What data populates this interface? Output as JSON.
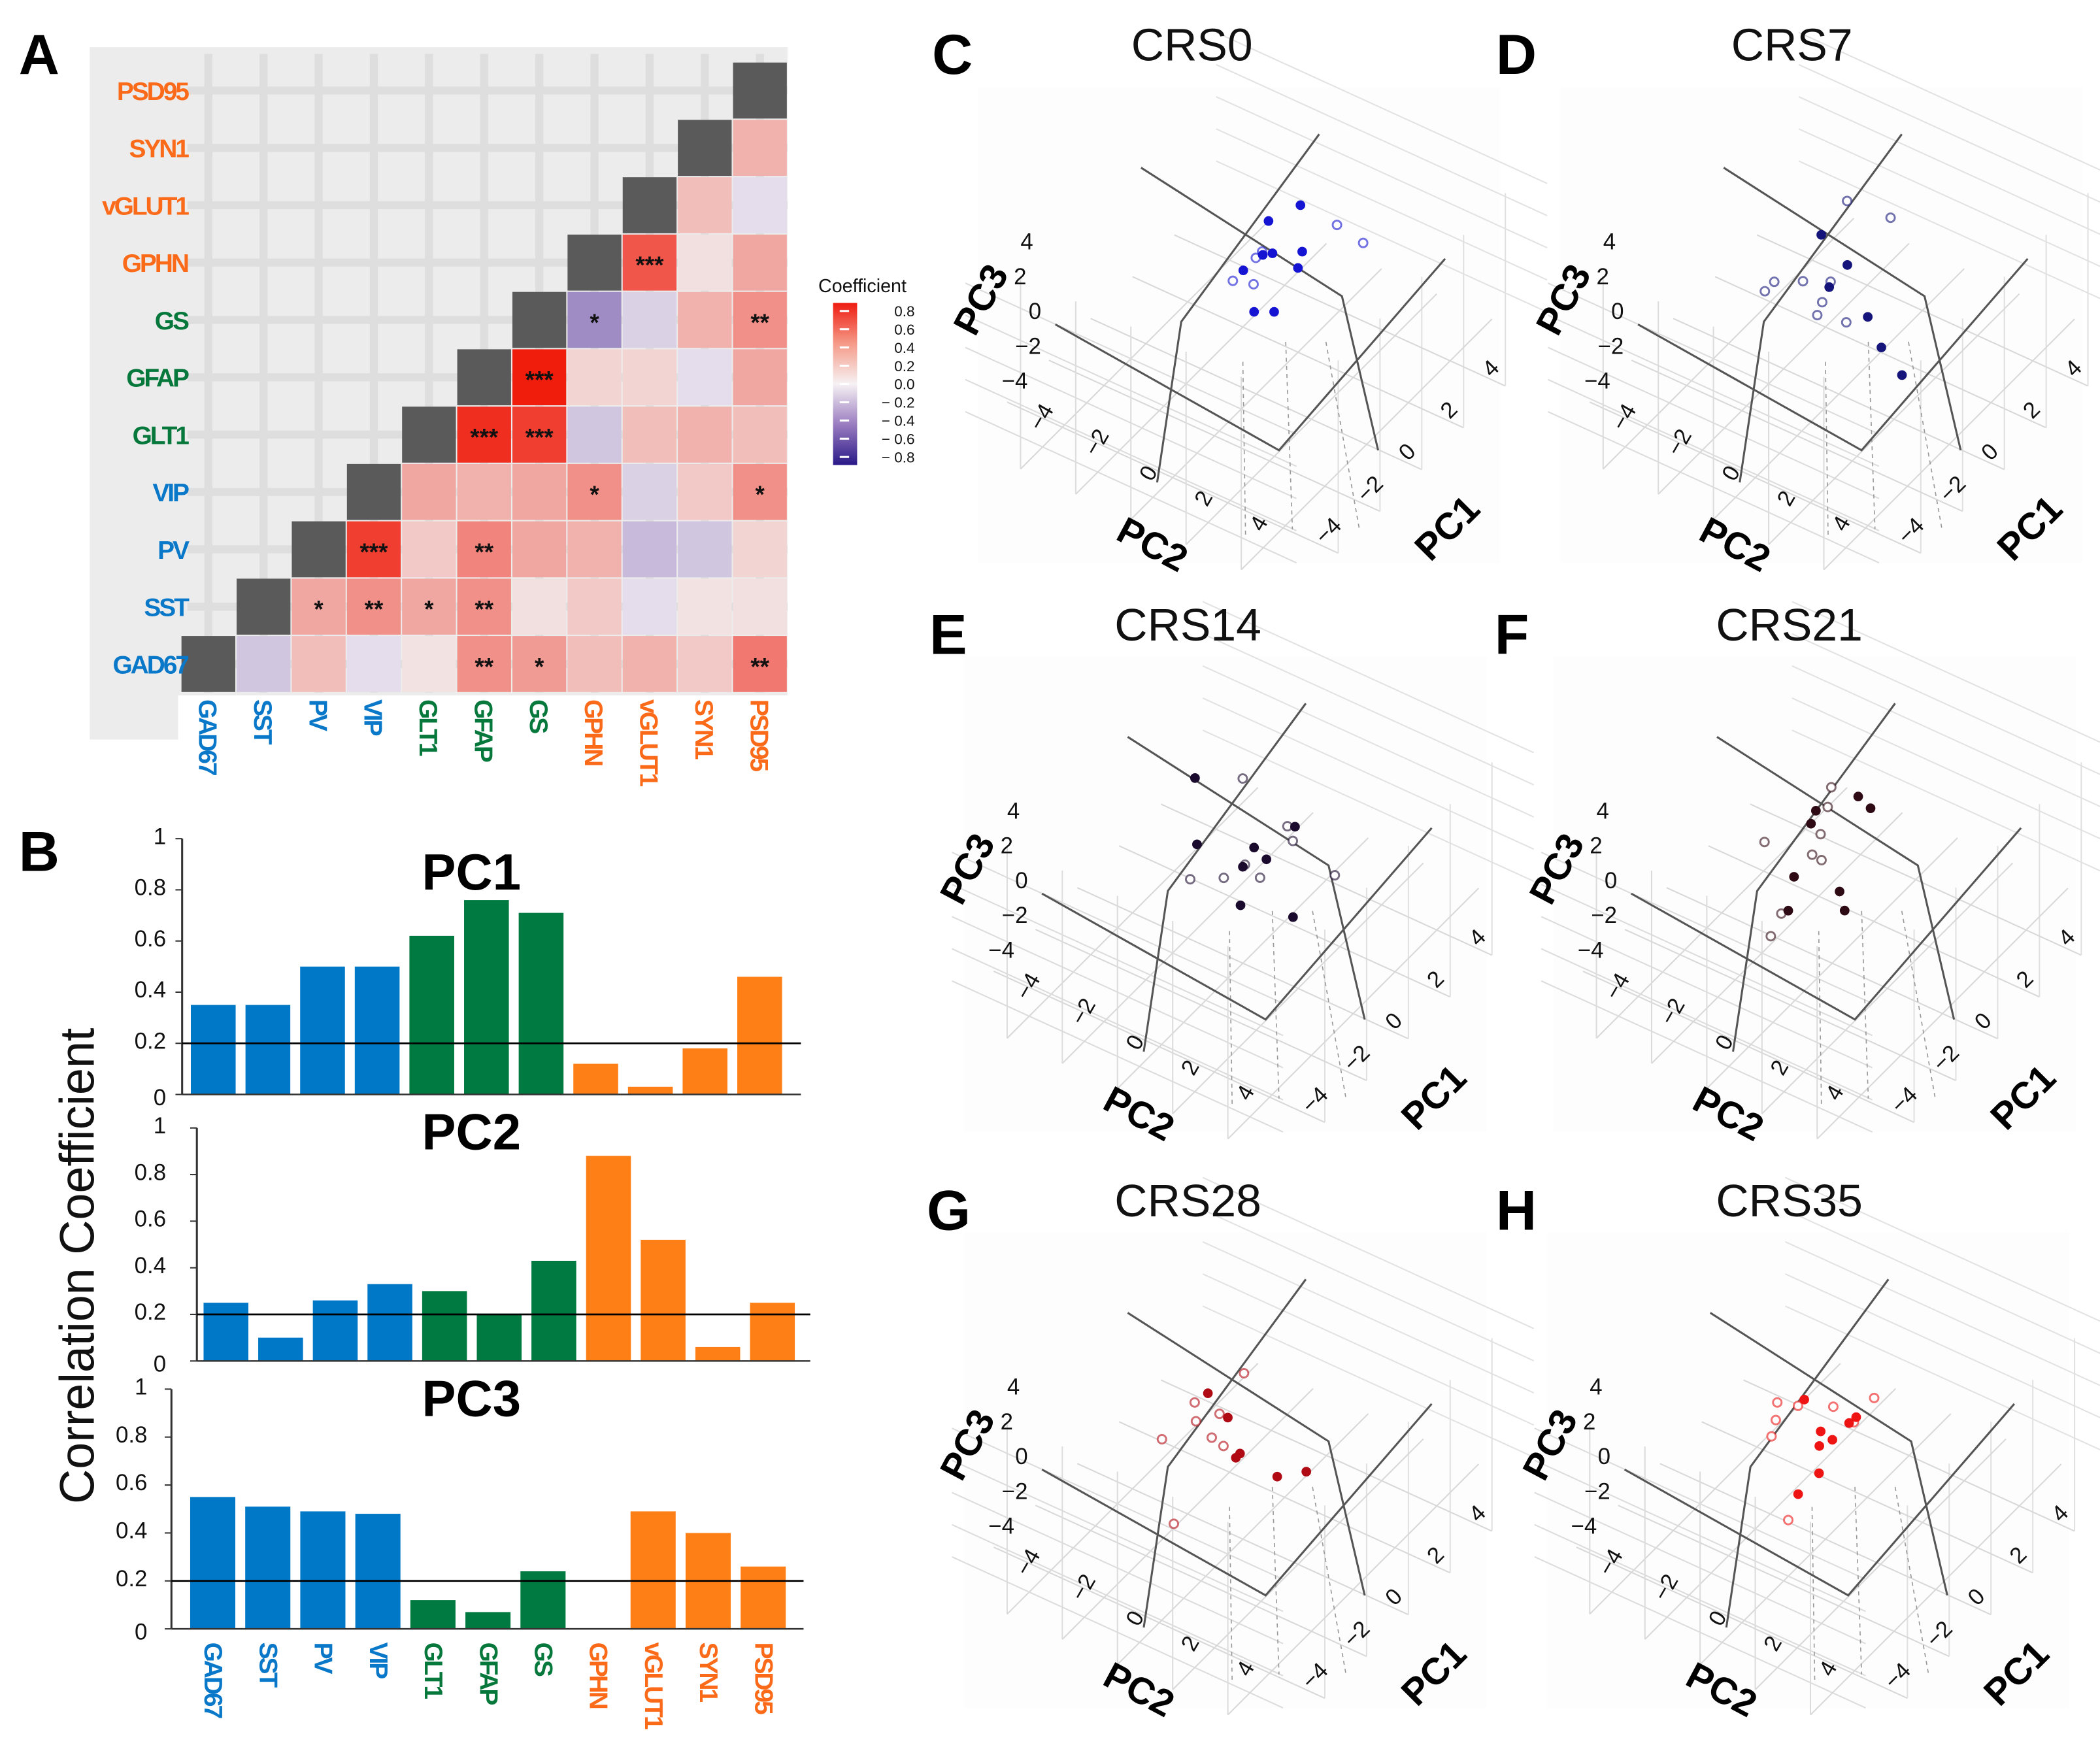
{
  "letters": [
    "A",
    "B",
    "C",
    "D",
    "E",
    "F",
    "G",
    "H"
  ],
  "gene_colors": [
    "#0a78c8",
    "#0a78c8",
    "#0a78c8",
    "#0a78c8",
    "#07783c",
    "#07783c",
    "#07783c",
    "#fb6a18",
    "#fb6a18",
    "#fb6a18",
    "#fb6a18"
  ],
  "bar_colors": {
    "interneuron": "#0078c8",
    "glial": "#007a40",
    "synaptic": "#ff7f17"
  },
  "chart_data": [
    {
      "type": "heatmap",
      "genes": [
        "GAD67",
        "SST",
        "PV",
        "VIP",
        "GLT1",
        "GFAP",
        "GS",
        "GPHN",
        "vGLUT1",
        "SYN1",
        "PSD95"
      ],
      "range": [
        -0.8,
        0.8
      ],
      "colorbar": {
        "title": "Coefficient",
        "ticks": [
          "0.8",
          "0.6",
          "0.4",
          "0.2",
          "0.0",
          "− 0.2",
          "− 0.4",
          "− 0.6",
          "− 0.8"
        ]
      },
      "pairs": [
        [
          "GAD67",
          "SST",
          -0.15,
          ""
        ],
        [
          "GAD67",
          "PV",
          0.2,
          ""
        ],
        [
          "GAD67",
          "VIP",
          -0.05,
          ""
        ],
        [
          "GAD67",
          "GLT1",
          0.04,
          ""
        ],
        [
          "GAD67",
          "GFAP",
          0.4,
          "**"
        ],
        [
          "GAD67",
          "GS",
          0.35,
          "*"
        ],
        [
          "GAD67",
          "GPHN",
          0.2,
          ""
        ],
        [
          "GAD67",
          "vGLUT1",
          0.25,
          ""
        ],
        [
          "GAD67",
          "SYN1",
          0.15,
          ""
        ],
        [
          "GAD67",
          "PSD95",
          0.5,
          "**"
        ],
        [
          "SST",
          "PV",
          0.3,
          "*"
        ],
        [
          "SST",
          "VIP",
          0.4,
          "**"
        ],
        [
          "SST",
          "GLT1",
          0.3,
          "*"
        ],
        [
          "SST",
          "GFAP",
          0.4,
          "**"
        ],
        [
          "SST",
          "GS",
          0.05,
          ""
        ],
        [
          "SST",
          "GPHN",
          0.15,
          ""
        ],
        [
          "SST",
          "vGLUT1",
          -0.05,
          ""
        ],
        [
          "SST",
          "SYN1",
          0.04,
          ""
        ],
        [
          "SST",
          "PSD95",
          0.05,
          ""
        ],
        [
          "PV",
          "VIP",
          0.75,
          "***"
        ],
        [
          "PV",
          "GLT1",
          0.15,
          ""
        ],
        [
          "PV",
          "GFAP",
          0.45,
          "**"
        ],
        [
          "PV",
          "GS",
          0.3,
          ""
        ],
        [
          "PV",
          "GPHN",
          0.25,
          ""
        ],
        [
          "PV",
          "vGLUT1",
          -0.2,
          ""
        ],
        [
          "PV",
          "SYN1",
          -0.15,
          ""
        ],
        [
          "PV",
          "PSD95",
          0.1,
          ""
        ],
        [
          "VIP",
          "GLT1",
          0.3,
          ""
        ],
        [
          "VIP",
          "GFAP",
          0.25,
          ""
        ],
        [
          "VIP",
          "GS",
          0.3,
          ""
        ],
        [
          "VIP",
          "GPHN",
          0.4,
          "*"
        ],
        [
          "VIP",
          "vGLUT1",
          -0.1,
          ""
        ],
        [
          "VIP",
          "SYN1",
          0.15,
          ""
        ],
        [
          "VIP",
          "PSD95",
          0.4,
          "*"
        ],
        [
          "GLT1",
          "GFAP",
          0.82,
          "***"
        ],
        [
          "GLT1",
          "GS",
          0.75,
          "***"
        ],
        [
          "GLT1",
          "GPHN",
          -0.15,
          ""
        ],
        [
          "GLT1",
          "vGLUT1",
          0.2,
          ""
        ],
        [
          "GLT1",
          "SYN1",
          0.25,
          ""
        ],
        [
          "GLT1",
          "PSD95",
          0.2,
          ""
        ],
        [
          "GFAP",
          "GS",
          0.92,
          "***"
        ],
        [
          "GFAP",
          "GPHN",
          0.1,
          ""
        ],
        [
          "GFAP",
          "vGLUT1",
          0.1,
          ""
        ],
        [
          "GFAP",
          "SYN1",
          -0.05,
          ""
        ],
        [
          "GFAP",
          "PSD95",
          0.3,
          ""
        ],
        [
          "GS",
          "GPHN",
          -0.4,
          "*"
        ],
        [
          "GS",
          "vGLUT1",
          -0.1,
          ""
        ],
        [
          "GS",
          "SYN1",
          0.25,
          ""
        ],
        [
          "GS",
          "PSD95",
          0.4,
          "**"
        ],
        [
          "GPHN",
          "vGLUT1",
          0.65,
          "***"
        ],
        [
          "GPHN",
          "SYN1",
          0.05,
          ""
        ],
        [
          "GPHN",
          "PSD95",
          0.3,
          ""
        ],
        [
          "vGLUT1",
          "SYN1",
          0.2,
          ""
        ],
        [
          "vGLUT1",
          "PSD95",
          -0.05,
          ""
        ],
        [
          "SYN1",
          "PSD95",
          0.25,
          ""
        ]
      ]
    },
    {
      "type": "bar",
      "title": "PC1",
      "ylabel": "Correlation Coefficient",
      "categories": [
        "GAD67",
        "SST",
        "PV",
        "VIP",
        "GLT1",
        "GFAP",
        "GS",
        "GPHN",
        "vGLUT1",
        "SYN1",
        "PSD95"
      ],
      "groups": [
        "interneuron",
        "interneuron",
        "interneuron",
        "interneuron",
        "glial",
        "glial",
        "glial",
        "synaptic",
        "synaptic",
        "synaptic",
        "synaptic"
      ],
      "values": [
        0.35,
        0.35,
        0.5,
        0.5,
        0.62,
        0.76,
        0.71,
        0.12,
        0.03,
        0.18,
        0.46
      ],
      "ylim": [
        0,
        1
      ],
      "yticks": [
        "0",
        "0.2",
        "0.4",
        "0.6",
        "0.8",
        "1"
      ],
      "threshold": 0.2
    },
    {
      "type": "bar",
      "title": "PC2",
      "categories": [
        "GAD67",
        "SST",
        "PV",
        "VIP",
        "GLT1",
        "GFAP",
        "GS",
        "GPHN",
        "vGLUT1",
        "SYN1",
        "PSD95"
      ],
      "groups": [
        "interneuron",
        "interneuron",
        "interneuron",
        "interneuron",
        "glial",
        "glial",
        "glial",
        "synaptic",
        "synaptic",
        "synaptic",
        "synaptic"
      ],
      "values": [
        0.25,
        0.1,
        0.26,
        0.33,
        0.3,
        0.2,
        0.43,
        0.88,
        0.52,
        0.06,
        0.25
      ],
      "ylim": [
        0,
        1
      ],
      "yticks": [
        "0",
        "0.2",
        "0.4",
        "0.6",
        "0.8",
        "1"
      ],
      "threshold": 0.2
    },
    {
      "type": "bar",
      "title": "PC3",
      "categories": [
        "GAD67",
        "SST",
        "PV",
        "VIP",
        "GLT1",
        "GFAP",
        "GS",
        "GPHN",
        "vGLUT1",
        "SYN1",
        "PSD95"
      ],
      "groups": [
        "interneuron",
        "interneuron",
        "interneuron",
        "interneuron",
        "glial",
        "glial",
        "glial",
        "synaptic",
        "synaptic",
        "synaptic",
        "synaptic"
      ],
      "values": [
        0.55,
        0.51,
        0.49,
        0.48,
        0.12,
        0.07,
        0.24,
        0,
        0.49,
        0.4,
        0.26
      ],
      "ylim": [
        0,
        1
      ],
      "yticks": [
        "0",
        "0.2",
        "0.4",
        "0.6",
        "0.8",
        "1"
      ],
      "threshold": 0.2
    },
    {
      "type": "scatter",
      "title": "CRS0",
      "color": "#1414d2",
      "axes": {
        "x": "PC1",
        "y": "PC2",
        "z": "PC3"
      },
      "ticks_pc1": [
        "4",
        "2",
        "0",
        "−2",
        "−4"
      ],
      "ticks_pc2": [
        "−4",
        "−2",
        "0",
        "2",
        "4"
      ],
      "ticks_pc3": [
        "4",
        "2",
        "0",
        "−2",
        "−4"
      ],
      "filled": [
        [
          3.7,
          -1.2,
          0
        ],
        [
          2.7,
          -1.6,
          0
        ],
        [
          1.7,
          -0.7,
          0
        ],
        [
          1.5,
          -0.9,
          0
        ],
        [
          2.2,
          0,
          0
        ],
        [
          0.7,
          -1.0,
          0
        ],
        [
          1.6,
          0.3,
          0
        ],
        [
          -0.5,
          0.3,
          0
        ],
        [
          -0.2,
          0.8,
          0
        ]
      ],
      "open": [
        [
          3.6,
          0.2,
          0
        ],
        [
          3.4,
          1.3,
          0
        ],
        [
          1.3,
          -1.0,
          0
        ],
        [
          0.2,
          -1.0,
          0
        ],
        [
          0.4,
          -0.4,
          0
        ],
        [
          1.6,
          -1.0,
          0
        ]
      ]
    },
    {
      "type": "scatter",
      "title": "CRS7",
      "color": "#14147a",
      "axes": {
        "x": "PC1",
        "y": "PC2",
        "z": "PC3"
      },
      "ticks_pc1": [
        "4",
        "2",
        "0",
        "−2",
        "−4"
      ],
      "ticks_pc2": [
        "−4",
        "−2",
        "0",
        "2",
        "4"
      ],
      "ticks_pc3": [
        "4",
        "2",
        "0",
        "−2",
        "−4"
      ],
      "filled": [
        [
          1.8,
          -2.0,
          0
        ],
        [
          1.2,
          -0.6,
          0
        ],
        [
          0.2,
          -0.5,
          0
        ],
        [
          -0.2,
          1.2,
          0
        ],
        [
          -1.0,
          2.3,
          0
        ],
        [
          -1.6,
          3.5,
          0
        ]
      ],
      "open": [
        [
          3.3,
          -2.2,
          0
        ],
        [
          3.4,
          -0.7,
          0
        ],
        [
          0,
          -1.3,
          0
        ],
        [
          -0.45,
          -2.0,
          0
        ],
        [
          -0.9,
          -2.0,
          0
        ],
        [
          -0.4,
          -0.3,
          0
        ],
        [
          -0.9,
          -0.1,
          0
        ],
        [
          -0.7,
          0.8,
          0
        ],
        [
          0.4,
          -0.6,
          0
        ]
      ]
    },
    {
      "type": "scatter",
      "title": "CRS14",
      "color": "#1a0a2e",
      "axes": {
        "x": "PC1",
        "y": "PC2",
        "z": "PC3"
      },
      "ticks_pc1": [
        "4",
        "2",
        "0",
        "−2",
        "−4"
      ],
      "ticks_pc2": [
        "−4",
        "−2",
        "0",
        "2",
        "4"
      ],
      "ticks_pc3": [
        "4",
        "2",
        "0",
        "−2",
        "−4"
      ],
      "filled": [
        [
          2.2,
          -3.4,
          0
        ],
        [
          0.05,
          -1.7,
          0
        ],
        [
          0.8,
          -0.2,
          0
        ],
        [
          2.1,
          0.3,
          0
        ],
        [
          0.6,
          0.4,
          0
        ],
        [
          0,
          0,
          0
        ],
        [
          -1.3,
          0.9,
          0
        ],
        [
          -0.9,
          2.5,
          0
        ]
      ],
      "open": [
        [
          2.9,
          -2.2,
          0
        ],
        [
          2.0,
          0.1,
          0
        ],
        [
          1.6,
          0.6,
          0
        ],
        [
          -1.2,
          -1.0,
          0
        ],
        [
          0.1,
          0,
          0
        ],
        [
          -0.1,
          0.7,
          0
        ],
        [
          1.1,
          2.5,
          0
        ],
        [
          -0.65,
          -0.2,
          0
        ]
      ]
    },
    {
      "type": "scatter",
      "title": "CRS21",
      "color": "#2e0a14",
      "axes": {
        "x": "PC1",
        "y": "PC2",
        "z": "PC3"
      },
      "ticks_pc1": [
        "4",
        "2",
        "0",
        "−2",
        "−4"
      ],
      "ticks_pc2": [
        "−4",
        "−2",
        "0",
        "2",
        "4"
      ],
      "ticks_pc3": [
        "4",
        "2",
        "0",
        "−2",
        "−4"
      ],
      "filled": [
        [
          1.6,
          -1.8,
          0
        ],
        [
          1.1,
          -1.6,
          0
        ],
        [
          2.7,
          -1.1,
          0
        ],
        [
          2.5,
          -0.5,
          0
        ],
        [
          -0.9,
          -0.7,
          0
        ],
        [
          -2.1,
          0,
          0
        ],
        [
          -0.7,
          0.8,
          0
        ],
        [
          -1.25,
          1.4,
          0
        ]
      ],
      "open": [
        [
          2.6,
          -2.0,
          0
        ],
        [
          1.9,
          -1.6,
          0
        ],
        [
          -0.2,
          -2.3,
          0
        ],
        [
          0.9,
          -1.1,
          0
        ],
        [
          0.1,
          -0.8,
          0
        ],
        [
          0.06,
          -0.43,
          0
        ],
        [
          -2.3,
          -0.1,
          0
        ],
        [
          -3.2,
          0.2,
          0
        ]
      ]
    },
    {
      "type": "scatter",
      "title": "CRS28",
      "color": "#b00a14",
      "axes": {
        "x": "PC1",
        "y": "PC2",
        "z": "PC3"
      },
      "ticks_pc1": [
        "4",
        "2",
        "0",
        "−2",
        "−4"
      ],
      "ticks_pc2": [
        "−4",
        "−2",
        "0",
        "2",
        "4"
      ],
      "ticks_pc3": [
        "4",
        "2",
        "0",
        "−2",
        "−4"
      ],
      "filled": [
        [
          1.1,
          -2.1,
          0
        ],
        [
          0.6,
          -1.0,
          0
        ],
        [
          -0.4,
          0.2,
          0
        ],
        [
          -0.6,
          0.2,
          0
        ],
        [
          -0.6,
          1.7,
          0
        ],
        [
          0,
          2.3,
          0
        ]
      ],
      "open": [
        [
          2.3,
          -1.7,
          0
        ],
        [
          0.6,
          -2.2,
          0
        ],
        [
          0.6,
          -1.3,
          0
        ],
        [
          0,
          -1.7,
          0
        ],
        [
          -1.1,
          -2.1,
          0
        ],
        [
          -0.3,
          -0.9,
          0
        ],
        [
          -0.4,
          -0.4,
          0
        ],
        [
          -3.7,
          0.3,
          0
        ]
      ]
    },
    {
      "type": "scatter",
      "title": "CRS35",
      "color": "#ee1414",
      "axes": {
        "x": "PC1",
        "y": "PC2",
        "z": "PC3"
      },
      "ticks_pc1": [
        "4",
        "2",
        "0",
        "−2",
        "−4"
      ],
      "ticks_pc2": [
        "−4",
        "−2",
        "0",
        "2",
        "4"
      ],
      "ticks_pc3": [
        "4",
        "2",
        "0",
        "−2",
        "−4"
      ],
      "filled": [
        [
          1.1,
          -1.6,
          0
        ],
        [
          0.3,
          -0.4,
          0
        ],
        [
          0.2,
          0.1,
          0
        ],
        [
          -0.2,
          -0.07,
          0
        ],
        [
          1.0,
          0.1,
          0
        ],
        [
          1.3,
          0.13,
          0
        ],
        [
          -1.1,
          0.6,
          0
        ],
        [
          -2.1,
          0.6,
          0
        ]
      ],
      "open": [
        [
          0.6,
          -2.2,
          0
        ],
        [
          0.8,
          -1.6,
          0
        ],
        [
          0,
          -1.8,
          0
        ],
        [
          -0.6,
          -1.5,
          0
        ],
        [
          1.3,
          -0.7,
          0
        ],
        [
          2.2,
          0.1,
          0
        ],
        [
          1.1,
          0.2,
          0
        ],
        [
          -3.1,
          1.0,
          0
        ]
      ]
    }
  ]
}
